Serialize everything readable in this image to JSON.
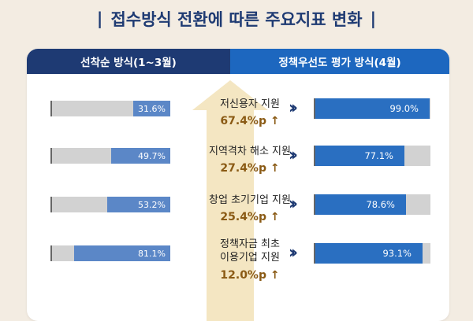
{
  "title": "접수방식 전환에 따른 주요지표 변화",
  "title_bar": "|",
  "headers": {
    "left": "선착순 방식(1~3월)",
    "right": "정책우선도 평가 방식(4월)"
  },
  "colors": {
    "navy": "#1e3a73",
    "blue": "#1d67bf",
    "bar_left": "#5b87c7",
    "bar_right": "#2a6fc1",
    "arrow": "#f4e6c2",
    "delta": "#8a5a14"
  },
  "chart_data": {
    "type": "bar",
    "categories": [
      "저신용자 지원",
      "지역격차 해소 지원",
      "창업 초기기업 지원",
      "정책자금 최초\n이용기업 지원"
    ],
    "series": [
      {
        "name": "선착순 방식(1~3월)",
        "values": [
          31.6,
          49.7,
          53.2,
          81.1
        ],
        "labels": [
          "31.6%",
          "49.7%",
          "53.2%",
          "81.1%"
        ]
      },
      {
        "name": "정책우선도 평가 방식(4월)",
        "values": [
          99.0,
          77.1,
          78.6,
          93.1
        ],
        "labels": [
          "99.0%",
          "77.1%",
          "78.6%",
          "93.1%"
        ]
      }
    ],
    "deltas": [
      "67.4%p ↑",
      "27.4%p ↑",
      "25.4%p ↑",
      "12.0%p ↑"
    ],
    "ylim": [
      0,
      100
    ],
    "unit": "%"
  }
}
